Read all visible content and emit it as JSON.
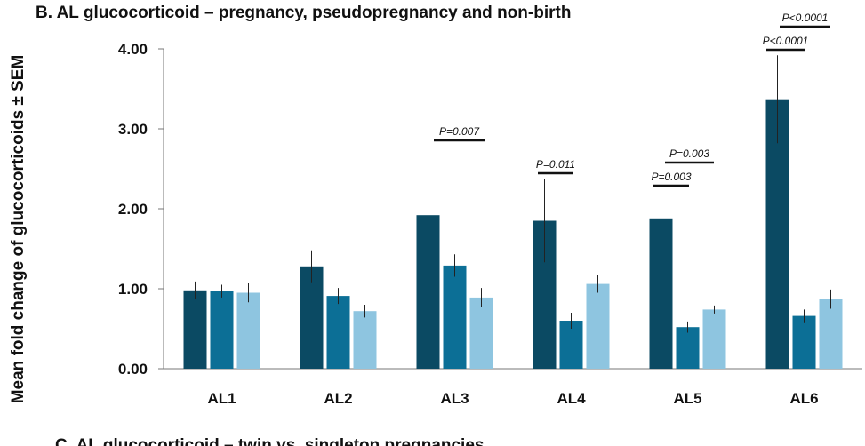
{
  "chart_data": {
    "type": "bar",
    "title": "B. AL glucocorticoid – pregnancy, pseudopregnancy and non-birth",
    "ylabel": "Mean fold change of glucocorticoids ± SEM",
    "categories": [
      "AL1",
      "AL2",
      "AL3",
      "AL4",
      "AL5",
      "AL6"
    ],
    "series": [
      {
        "color": "#0b4a63",
        "values": [
          0.98,
          1.28,
          1.92,
          1.85,
          1.88,
          3.37
        ],
        "errors": [
          0.11,
          0.2,
          0.84,
          0.52,
          0.31,
          0.55
        ]
      },
      {
        "color": "#0c6f96",
        "values": [
          0.97,
          0.91,
          1.29,
          0.6,
          0.52,
          0.66
        ],
        "errors": [
          0.08,
          0.1,
          0.14,
          0.1,
          0.07,
          0.08
        ]
      },
      {
        "color": "#8ec5e0",
        "values": [
          0.95,
          0.72,
          0.89,
          1.06,
          0.74,
          0.87
        ],
        "errors": [
          0.12,
          0.08,
          0.12,
          0.11,
          0.05,
          0.12
        ]
      }
    ],
    "ylim": [
      0,
      4
    ],
    "yticks": [
      {
        "value": 0,
        "label": "0.00"
      },
      {
        "value": 1,
        "label": "1.00"
      },
      {
        "value": 2,
        "label": "2.00"
      },
      {
        "value": 3,
        "label": "3.00"
      },
      {
        "value": 4,
        "label": "4.00"
      }
    ],
    "annotations": [
      "P=0.007",
      "P=0.011",
      "P=0.003",
      "P=0.003",
      "P<0.0001",
      "P<0.0001"
    ],
    "next_title": "C. AL glucocorticoid – twin vs. singleton pregnancies"
  }
}
